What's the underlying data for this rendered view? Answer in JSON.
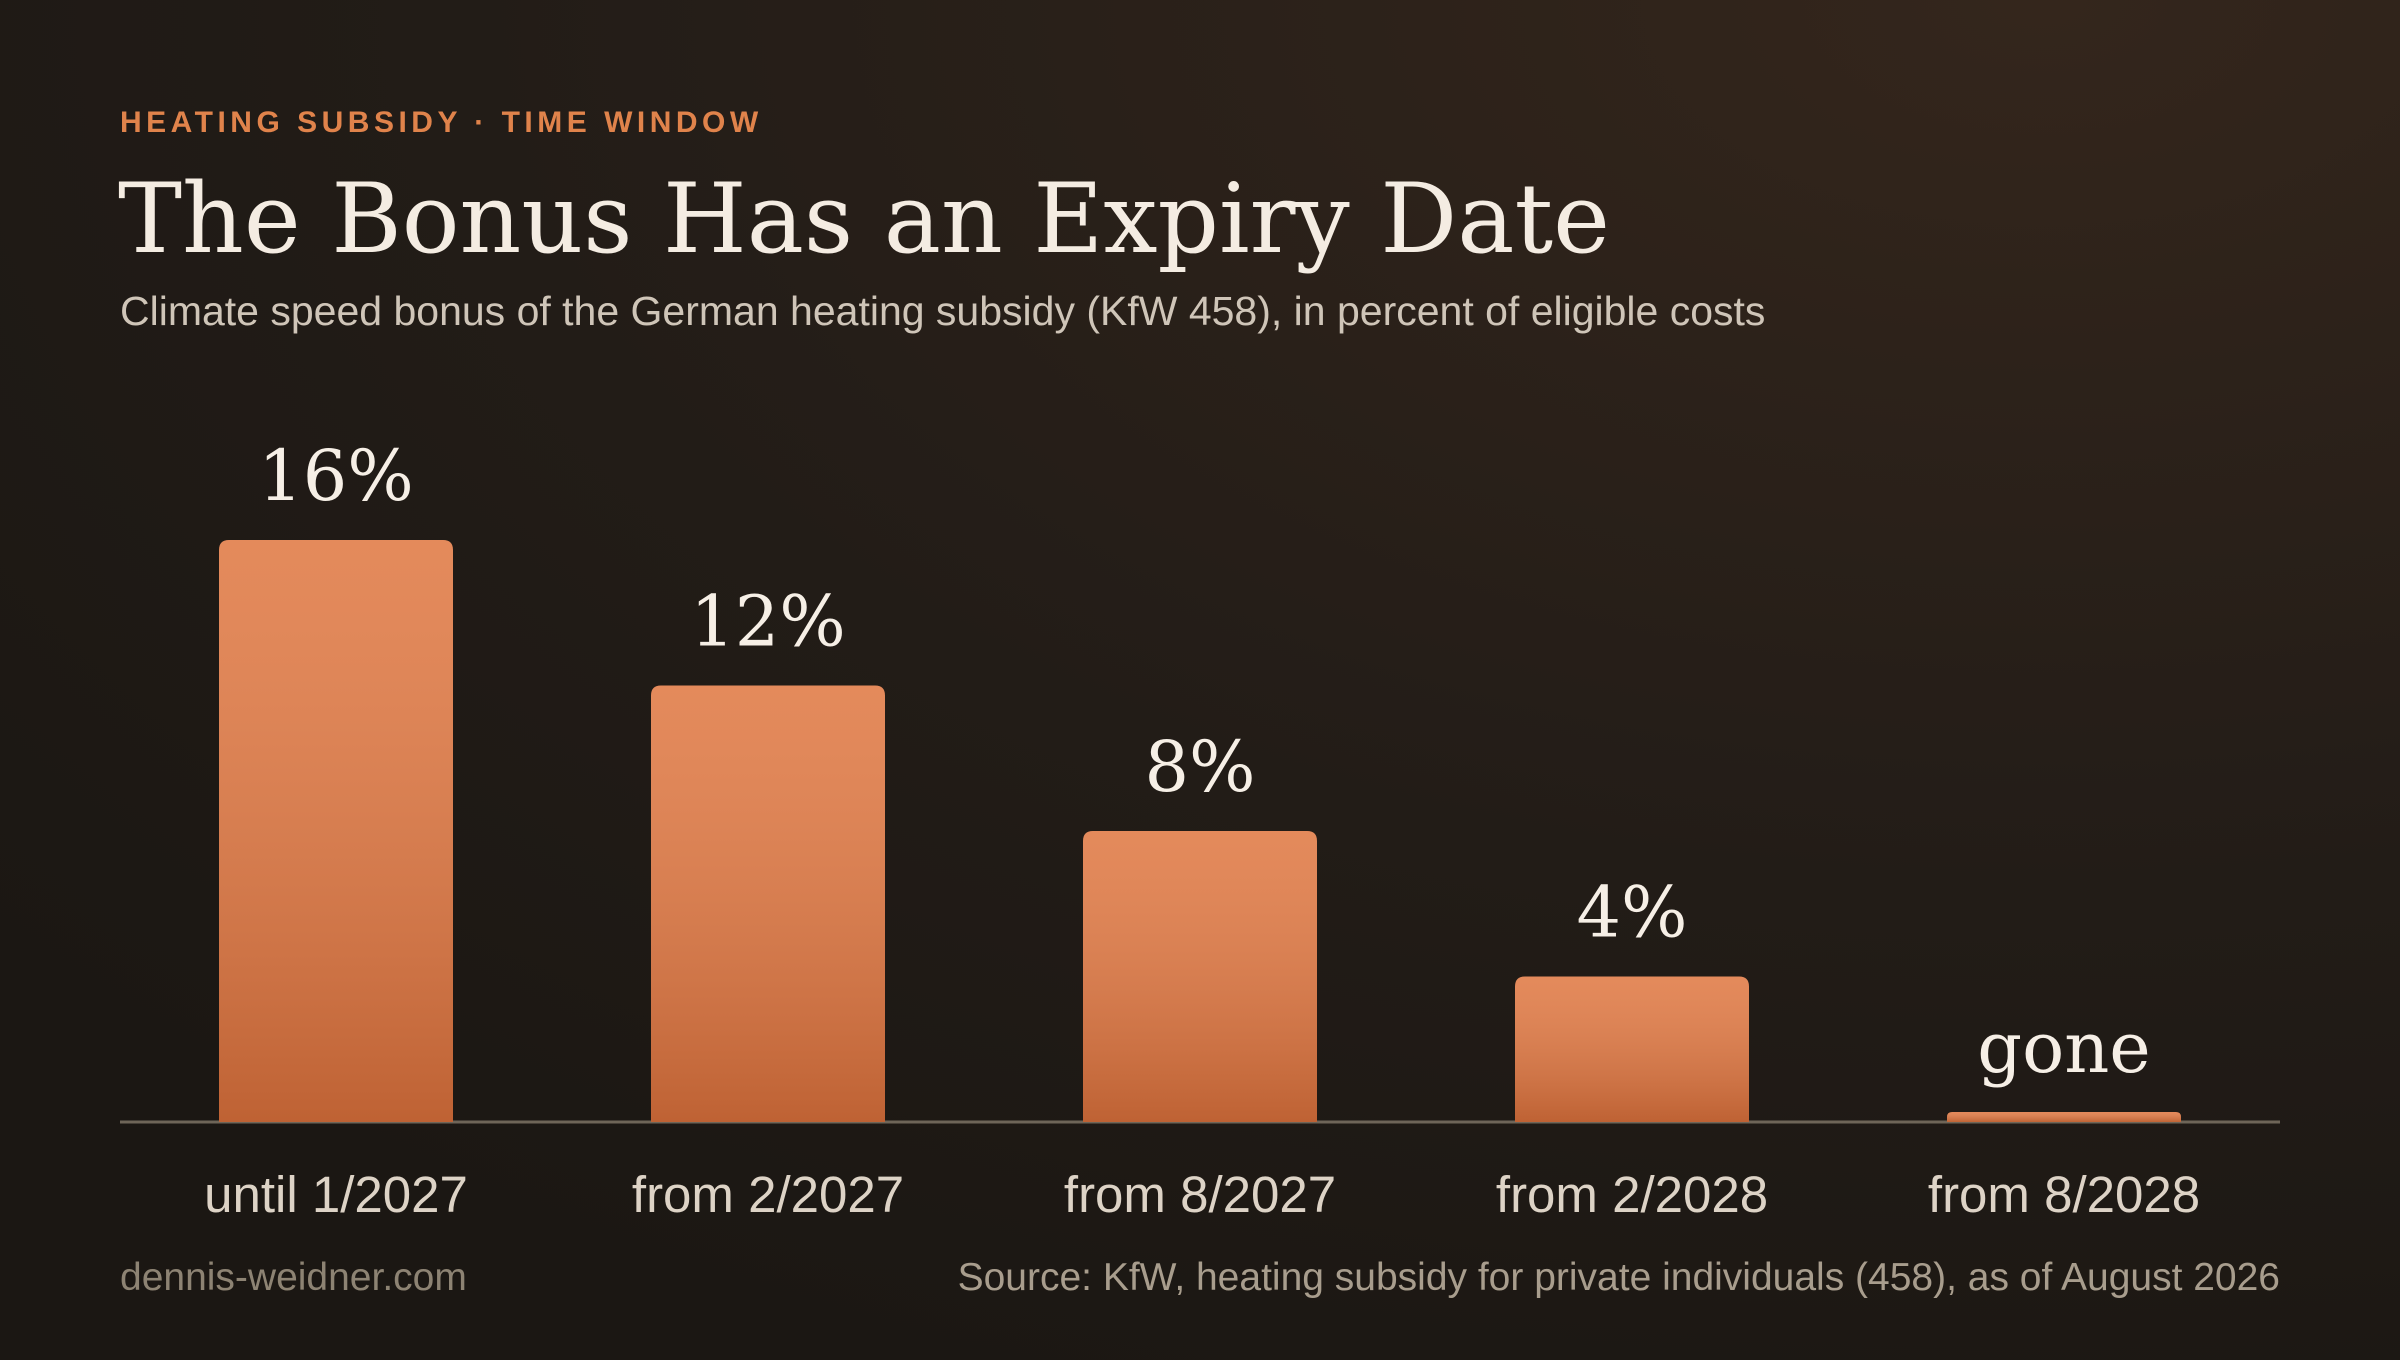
{
  "chart_data": {
    "type": "bar",
    "kicker": "HEATING SUBSIDY · TIME WINDOW",
    "title": "The Bonus Has an Expiry Date",
    "subtitle": "Climate speed bonus of the German heating subsidy (KfW 458), in percent of eligible costs",
    "categories": [
      "until 1/2027",
      "from 2/2027",
      "from 8/2027",
      "from 2/2028",
      "from 8/2028"
    ],
    "values": [
      16,
      12,
      8,
      4,
      0
    ],
    "value_labels": [
      "16%",
      "12%",
      "8%",
      "4%",
      "gone"
    ],
    "color": "#e07a45",
    "credit": "dennis-weidner.com",
    "source": "Source: KfW, heating subsidy for private individuals (458), as of August 2026"
  }
}
